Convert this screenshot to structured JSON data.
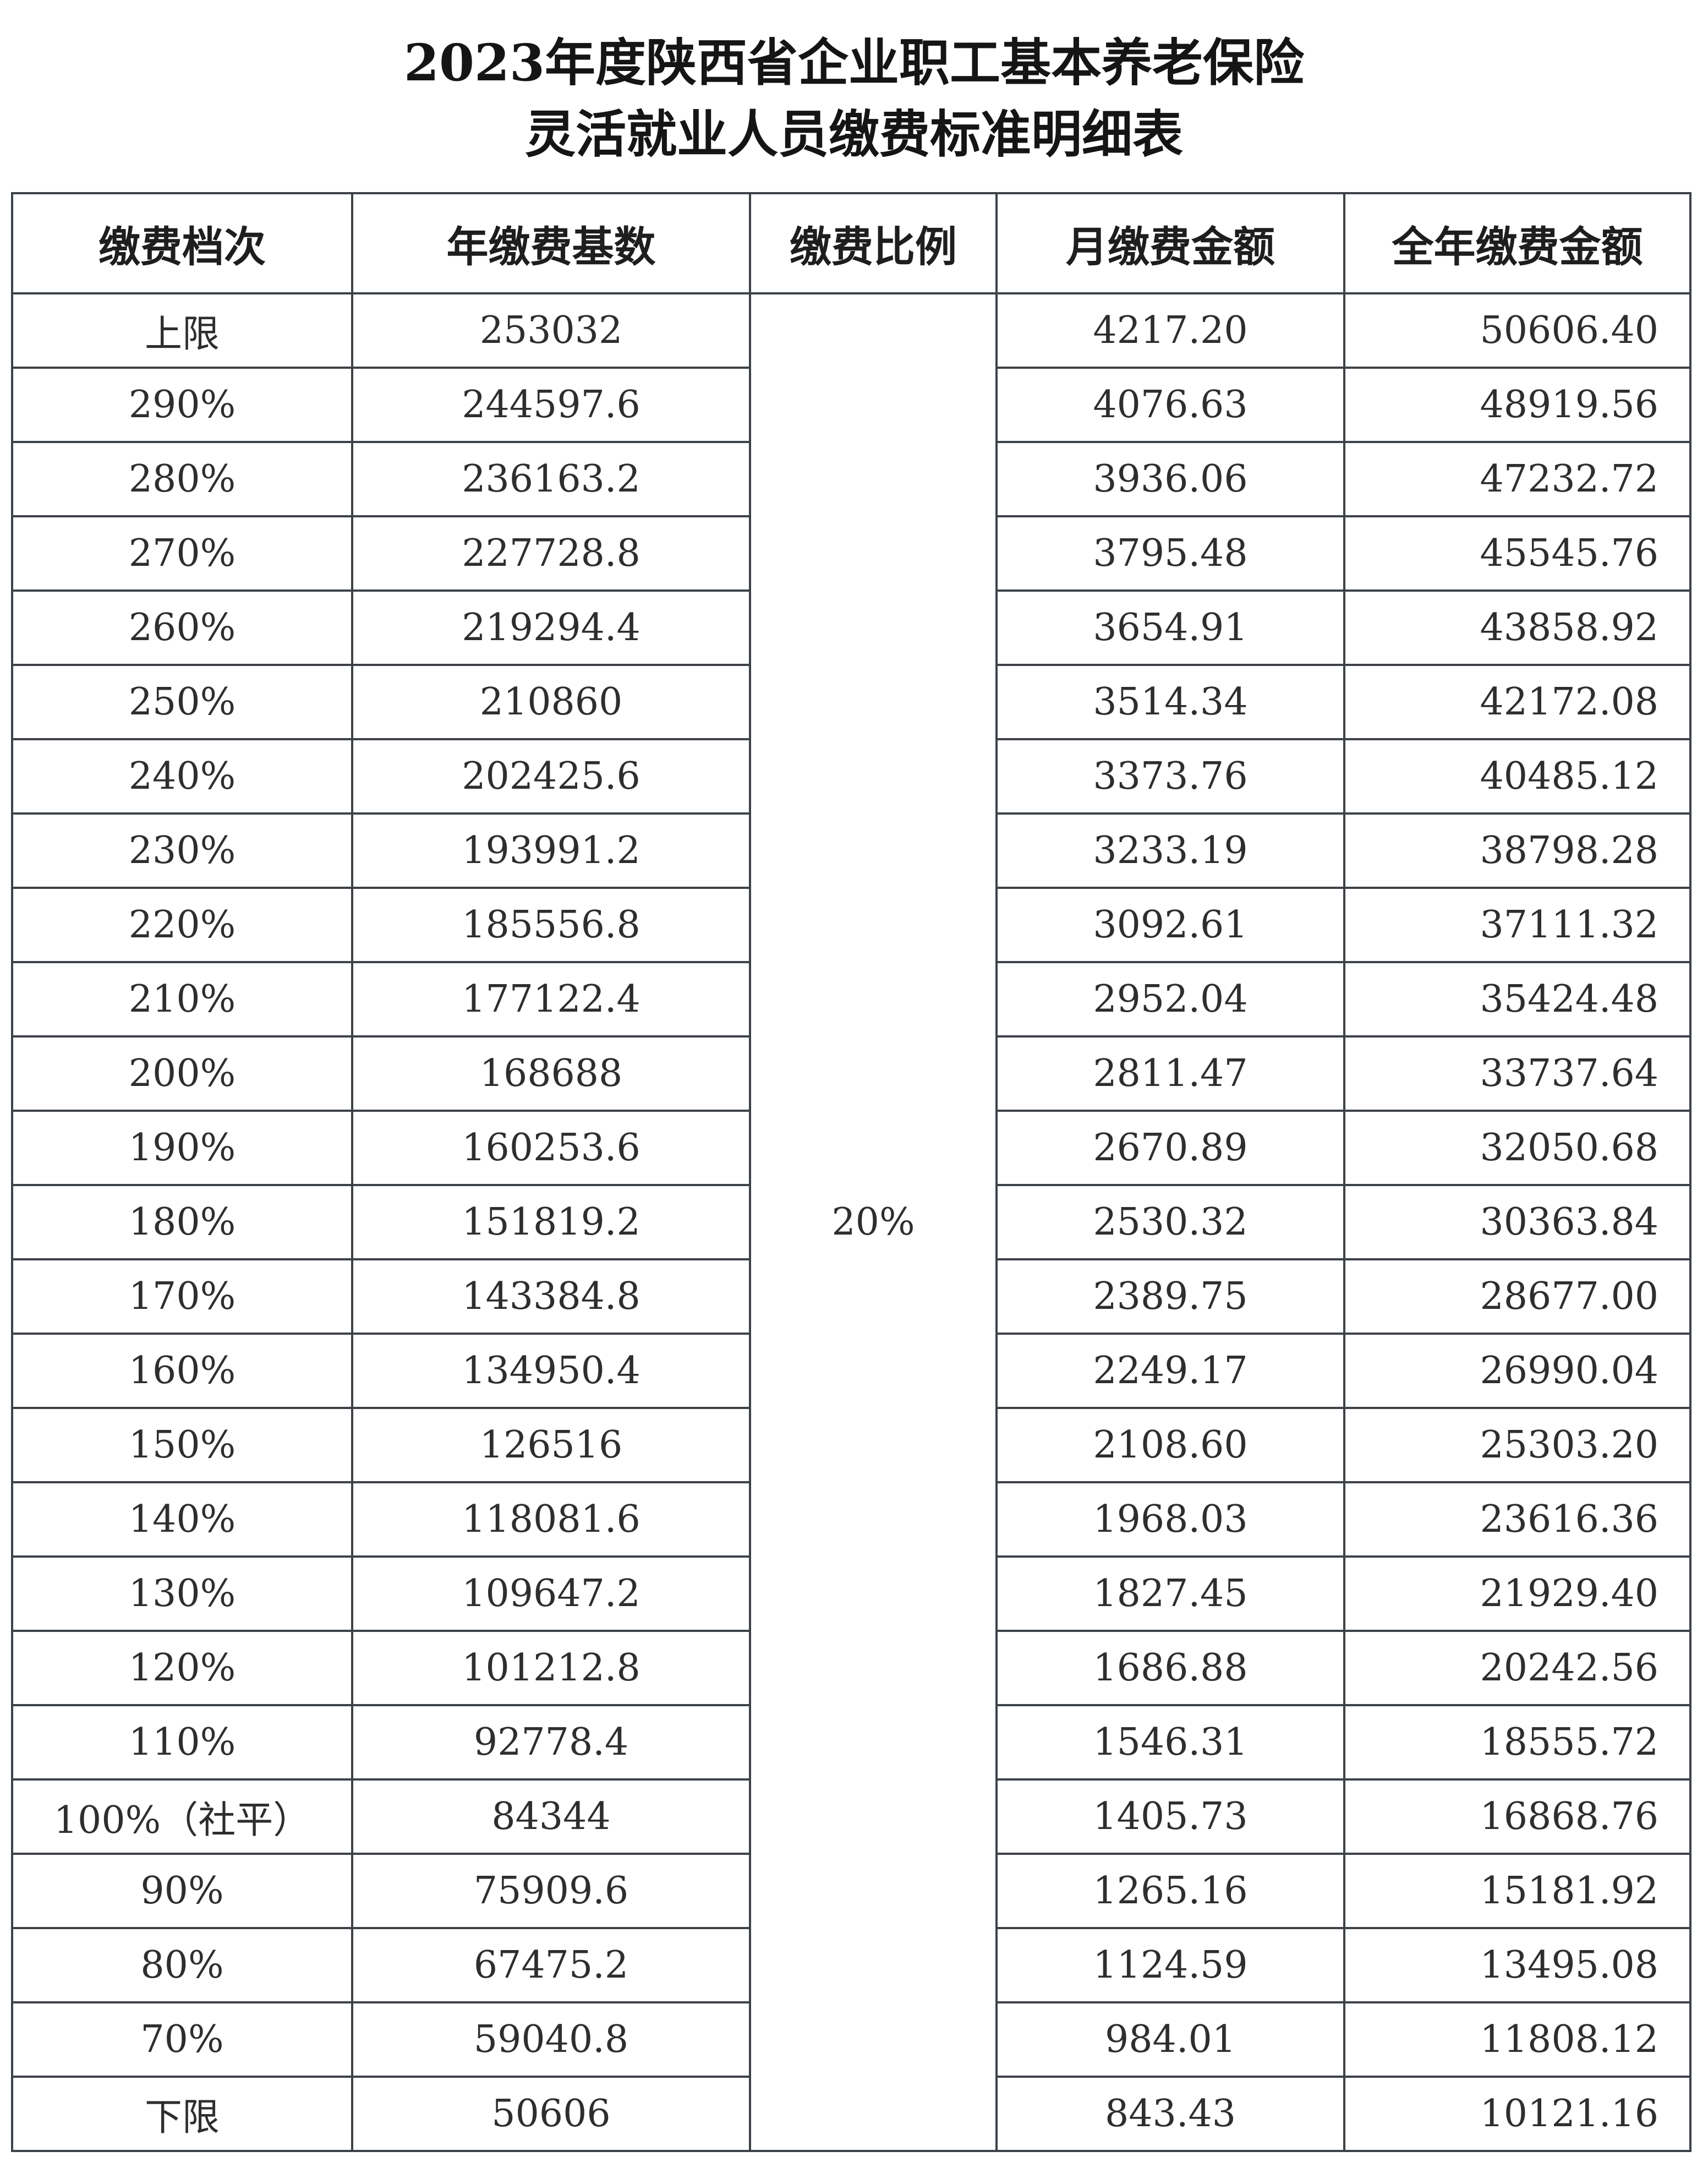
{
  "title_line1": "2023年度陕西省企业职工基本养老保险",
  "title_line2": "灵活就业人员缴费标准明细表",
  "headers": [
    "缴费档次",
    "年缴费基数",
    "缴费比例",
    "月缴费金额",
    "全年缴费金额"
  ],
  "rate": "20%",
  "rows": [
    [
      "上限",
      "253032",
      "4217.20",
      "50606.40"
    ],
    [
      "290%",
      "244597.6",
      "4076.63",
      "48919.56"
    ],
    [
      "280%",
      "236163.2",
      "3936.06",
      "47232.72"
    ],
    [
      "270%",
      "227728.8",
      "3795.48",
      "45545.76"
    ],
    [
      "260%",
      "219294.4",
      "3654.91",
      "43858.92"
    ],
    [
      "250%",
      "210860",
      "3514.34",
      "42172.08"
    ],
    [
      "240%",
      "202425.6",
      "3373.76",
      "40485.12"
    ],
    [
      "230%",
      "193991.2",
      "3233.19",
      "38798.28"
    ],
    [
      "220%",
      "185556.8",
      "3092.61",
      "37111.32"
    ],
    [
      "210%",
      "177122.4",
      "2952.04",
      "35424.48"
    ],
    [
      "200%",
      "168688",
      "2811.47",
      "33737.64"
    ],
    [
      "190%",
      "160253.6",
      "2670.89",
      "32050.68"
    ],
    [
      "180%",
      "151819.2",
      "2530.32",
      "30363.84"
    ],
    [
      "170%",
      "143384.8",
      "2389.75",
      "28677.00"
    ],
    [
      "160%",
      "134950.4",
      "2249.17",
      "26990.04"
    ],
    [
      "150%",
      "126516",
      "2108.60",
      "25303.20"
    ],
    [
      "140%",
      "118081.6",
      "1968.03",
      "23616.36"
    ],
    [
      "130%",
      "109647.2",
      "1827.45",
      "21929.40"
    ],
    [
      "120%",
      "101212.8",
      "1686.88",
      "20242.56"
    ],
    [
      "110%",
      "92778.4",
      "1546.31",
      "18555.72"
    ],
    [
      "100%（社平）",
      "84344",
      "1405.73",
      "16868.76"
    ],
    [
      "90%",
      "75909.6",
      "1265.16",
      "15181.92"
    ],
    [
      "80%",
      "67475.2",
      "1124.59",
      "13495.08"
    ],
    [
      "70%",
      "59040.8",
      "984.01",
      "11808.12"
    ],
    [
      "下限",
      "50606",
      "843.43",
      "10121.16"
    ]
  ]
}
